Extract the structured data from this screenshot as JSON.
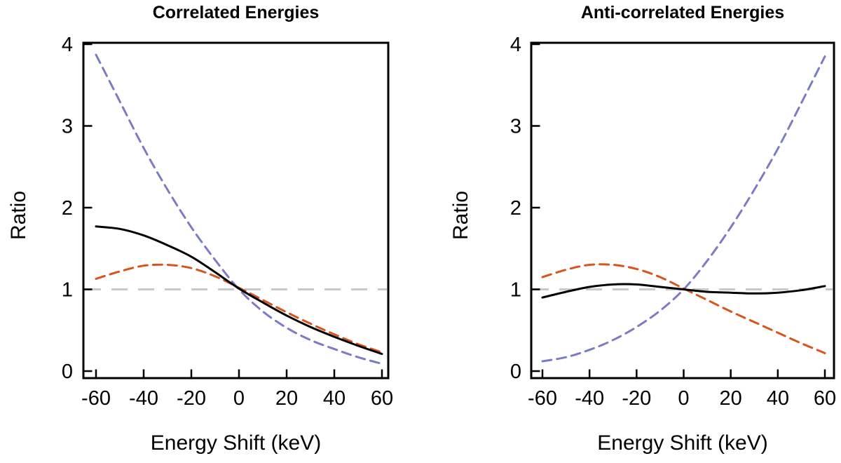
{
  "figure": {
    "background": "#FFFFFF",
    "text_color": "#000000"
  },
  "chart_data": [
    {
      "type": "line",
      "title": "Correlated Energies",
      "xlabel": "Energy Shift (keV)",
      "ylabel": "Ratio",
      "xlim": [
        -65,
        63
      ],
      "ylim": [
        -0.09,
        4.05
      ],
      "xticks": [
        -60,
        -40,
        -20,
        0,
        20,
        40,
        60
      ],
      "yticks": [
        0,
        1,
        2,
        3,
        4
      ],
      "grid": false,
      "legend": null,
      "reference_line": {
        "y": 1,
        "color": "#C9C9C9",
        "style": "long-dash"
      },
      "x": [
        -60,
        -50,
        -40,
        -30,
        -20,
        -10,
        0,
        10,
        20,
        30,
        40,
        50,
        60
      ],
      "series": [
        {
          "name": "blue-dashed",
          "color": "#7C7CC4",
          "style": "dashed",
          "values": [
            3.87,
            3.3,
            2.73,
            2.22,
            1.76,
            1.36,
            1.0,
            0.73,
            0.53,
            0.38,
            0.27,
            0.17,
            0.09
          ]
        },
        {
          "name": "orange-dashed",
          "color": "#D9541C",
          "style": "dashed",
          "values": [
            1.13,
            1.22,
            1.29,
            1.3,
            1.26,
            1.16,
            1.02,
            0.87,
            0.72,
            0.58,
            0.45,
            0.33,
            0.23
          ]
        },
        {
          "name": "black-solid",
          "color": "#000000",
          "style": "solid",
          "values": [
            1.77,
            1.74,
            1.66,
            1.54,
            1.4,
            1.21,
            1.01,
            0.84,
            0.68,
            0.54,
            0.42,
            0.31,
            0.21
          ]
        }
      ]
    },
    {
      "type": "line",
      "title": "Anti-correlated Energies",
      "xlabel": "Energy Shift (keV)",
      "ylabel": "Ratio",
      "xlim": [
        -65,
        63
      ],
      "ylim": [
        -0.09,
        4.05
      ],
      "xticks": [
        -60,
        -40,
        -20,
        0,
        20,
        40,
        60
      ],
      "yticks": [
        0,
        1,
        2,
        3,
        4
      ],
      "grid": false,
      "legend": null,
      "reference_line": {
        "y": 1,
        "color": "#C9C9C9",
        "style": "long-dash"
      },
      "x": [
        -60,
        -50,
        -40,
        -30,
        -20,
        -10,
        0,
        10,
        20,
        30,
        40,
        50,
        60
      ],
      "series": [
        {
          "name": "blue-dashed",
          "color": "#7C7CC4",
          "style": "dashed",
          "values": [
            0.12,
            0.17,
            0.26,
            0.38,
            0.54,
            0.74,
            1.0,
            1.35,
            1.76,
            2.22,
            2.72,
            3.28,
            3.85
          ]
        },
        {
          "name": "orange-dashed",
          "color": "#D9541C",
          "style": "dashed",
          "values": [
            1.15,
            1.24,
            1.3,
            1.3,
            1.25,
            1.15,
            1.01,
            0.87,
            0.73,
            0.6,
            0.47,
            0.34,
            0.22
          ]
        },
        {
          "name": "black-solid",
          "color": "#000000",
          "style": "solid",
          "values": [
            0.9,
            0.97,
            1.03,
            1.06,
            1.06,
            1.03,
            1.0,
            0.97,
            0.96,
            0.95,
            0.96,
            0.99,
            1.04
          ]
        }
      ]
    }
  ]
}
